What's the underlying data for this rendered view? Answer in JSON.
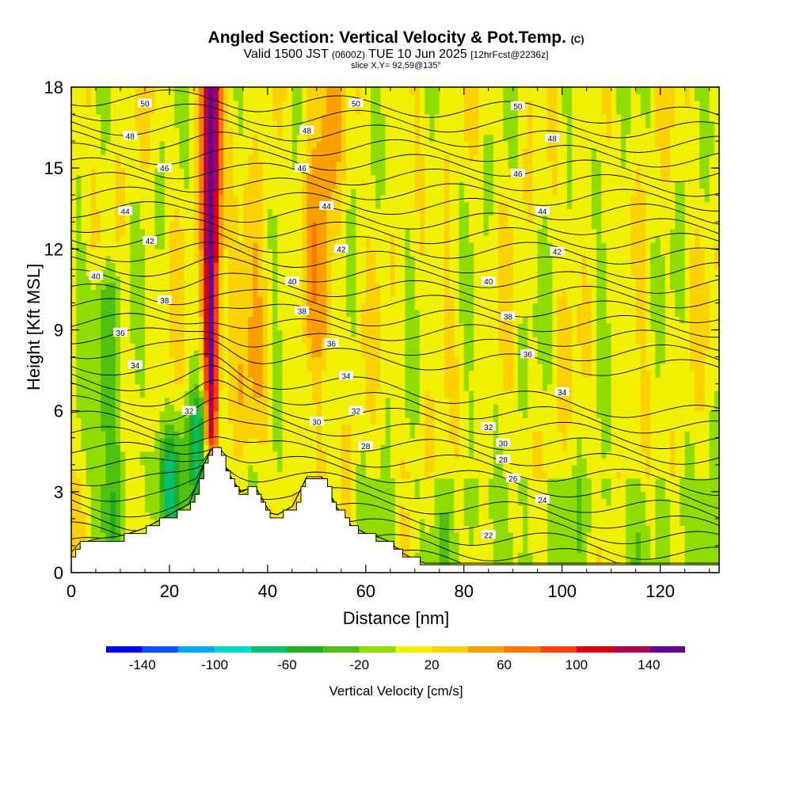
{
  "header": {
    "title": "Angled Section: Vertical Velocity & Pot.Temp.",
    "title_unit": "(C)",
    "valid_prefix": "Valid 1500 JST",
    "valid_utc": "(0600Z)",
    "valid_date": "TUE 10 Jun 2025",
    "forecast": "[12hrFcst@2236z]",
    "slice": "slice X,Y= 92,59@135°"
  },
  "chart_data": {
    "type": "heatmap",
    "title": "Angled Section: Vertical Velocity & Pot.Temp.",
    "xlabel": "Distance [nm]",
    "ylabel": "Height [Kft MSL]",
    "xlim": [
      0,
      132
    ],
    "ylim": [
      0,
      18
    ],
    "x_ticks": [
      0,
      20,
      40,
      60,
      80,
      100,
      120
    ],
    "y_ticks": [
      0,
      3,
      6,
      9,
      12,
      15,
      18
    ],
    "colorbar": {
      "label": "Vertical Velocity [cm/s]",
      "tick_values": [
        -140,
        -100,
        -60,
        -20,
        20,
        60,
        100,
        140
      ],
      "bins": [
        -160,
        -140,
        -120,
        -100,
        -80,
        -60,
        -40,
        -20,
        0,
        20,
        40,
        60,
        80,
        100,
        120,
        140,
        160
      ],
      "colors": [
        "#0000f0",
        "#0055ff",
        "#00aaee",
        "#00d8c8",
        "#00c070",
        "#20b020",
        "#50c010",
        "#90dc00",
        "#f0f000",
        "#fcd200",
        "#fca000",
        "#fc7800",
        "#fc4000",
        "#e00000",
        "#b00050",
        "#6a0090"
      ]
    },
    "velocity_features": [
      {
        "name": "main updraft",
        "x": 28.5,
        "y_base": 5.5,
        "y_top": 18,
        "peak_cms": 150
      },
      {
        "name": "secondary updraft",
        "x": 51,
        "y_base": 9,
        "y_top": 18,
        "peak_cms": 40
      },
      {
        "name": "weak updraft",
        "x": 37,
        "y_base": 6,
        "y_top": 14,
        "peak_cms": 25
      },
      {
        "name": "downdraft",
        "x": 7.5,
        "y_base": 2,
        "y_top": 10,
        "peak_cms": -45
      },
      {
        "name": "downdraft",
        "x": 20,
        "y_base": 2.5,
        "y_top": 4,
        "peak_cms": -60
      },
      {
        "name": "downdraft",
        "x": 26.5,
        "y_base": 3.5,
        "y_top": 5.5,
        "peak_cms": -70
      }
    ],
    "isentropes": {
      "unit": "C",
      "contour_labels": [
        {
          "value": 50,
          "x": 15,
          "y": 17.4
        },
        {
          "value": 50,
          "x": 58,
          "y": 17.4
        },
        {
          "value": 50,
          "x": 91,
          "y": 17.3
        },
        {
          "value": 48,
          "x": 12,
          "y": 16.2
        },
        {
          "value": 48,
          "x": 48,
          "y": 16.4
        },
        {
          "value": 48,
          "x": 98,
          "y": 16.1
        },
        {
          "value": 46,
          "x": 19,
          "y": 15.0
        },
        {
          "value": 46,
          "x": 47,
          "y": 15.0
        },
        {
          "value": 46,
          "x": 91,
          "y": 14.8
        },
        {
          "value": 44,
          "x": 11,
          "y": 13.4
        },
        {
          "value": 44,
          "x": 52,
          "y": 13.6
        },
        {
          "value": 44,
          "x": 96,
          "y": 13.4
        },
        {
          "value": 42,
          "x": 16,
          "y": 12.3
        },
        {
          "value": 42,
          "x": 55,
          "y": 12.0
        },
        {
          "value": 42,
          "x": 99,
          "y": 11.9
        },
        {
          "value": 40,
          "x": 5,
          "y": 11.0
        },
        {
          "value": 40,
          "x": 45,
          "y": 10.8
        },
        {
          "value": 40,
          "x": 85,
          "y": 10.8
        },
        {
          "value": 38,
          "x": 19,
          "y": 10.1
        },
        {
          "value": 38,
          "x": 47,
          "y": 9.7
        },
        {
          "value": 38,
          "x": 89,
          "y": 9.5
        },
        {
          "value": 36,
          "x": 10,
          "y": 8.9
        },
        {
          "value": 36,
          "x": 53,
          "y": 8.5
        },
        {
          "value": 36,
          "x": 93,
          "y": 8.1
        },
        {
          "value": 34,
          "x": 13,
          "y": 7.7
        },
        {
          "value": 34,
          "x": 56,
          "y": 7.3
        },
        {
          "value": 34,
          "x": 100,
          "y": 6.7
        },
        {
          "value": 32,
          "x": 24,
          "y": 6.0
        },
        {
          "value": 32,
          "x": 58,
          "y": 6.0
        },
        {
          "value": 32,
          "x": 85,
          "y": 5.4
        },
        {
          "value": 30,
          "x": 50,
          "y": 5.6
        },
        {
          "value": 30,
          "x": 88,
          "y": 4.8
        },
        {
          "value": 28,
          "x": 60,
          "y": 4.7
        },
        {
          "value": 28,
          "x": 88,
          "y": 4.2
        },
        {
          "value": 26,
          "x": 90,
          "y": 3.5
        },
        {
          "value": 24,
          "x": 96,
          "y": 2.7
        },
        {
          "value": 22,
          "x": 85,
          "y": 1.4
        }
      ]
    }
  }
}
